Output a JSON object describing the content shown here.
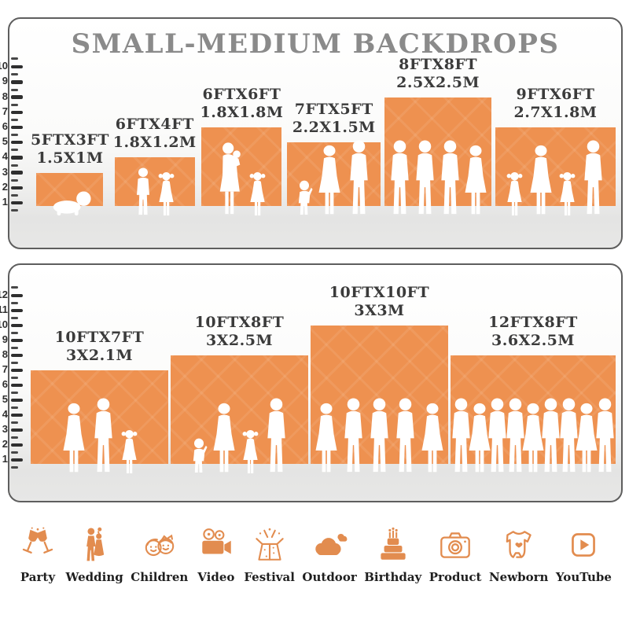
{
  "title": "SMALL-MEDIUM BACKDROPS",
  "colors": {
    "backdrop_orange": "#EE9150",
    "icon_orange": "#E28C4F",
    "title_gray": "#8A8A8A",
    "label_dark": "#3B3B3B",
    "ruler_dark": "#2F2F2F"
  },
  "chart_data": [
    {
      "type": "bar",
      "panel": "top",
      "title": "SMALL-MEDIUM BACKDROPS",
      "ylabel": "height scale (ft ruler)",
      "axis_ticks": [
        1,
        2,
        3,
        4,
        5,
        6,
        7,
        8,
        9,
        10
      ],
      "scale_min": 1,
      "scale_max": 10,
      "bars": [
        {
          "label_ft": "5FTX3FT",
          "label_m": "1.5X1M",
          "width_ft": 5,
          "height_ft": 3,
          "figures": [
            "crawling-baby"
          ]
        },
        {
          "label_ft": "6FTX4FT",
          "label_m": "1.8X1.2M",
          "width_ft": 6,
          "height_ft": 4,
          "figures": [
            "boy",
            "girl"
          ]
        },
        {
          "label_ft": "6FTX6FT",
          "label_m": "1.8X1.8M",
          "width_ft": 6,
          "height_ft": 6,
          "figures": [
            "mother-holding-baby",
            "girl"
          ]
        },
        {
          "label_ft": "7FTX5FT",
          "label_m": "2.2X1.5M",
          "width_ft": 7,
          "height_ft": 5,
          "figures": [
            "toddler",
            "woman",
            "man"
          ]
        },
        {
          "label_ft": "8FTX8FT",
          "label_m": "2.5X2.5M",
          "width_ft": 8,
          "height_ft": 8,
          "figures": [
            "man",
            "man",
            "man",
            "woman"
          ]
        },
        {
          "label_ft": "9FTX6FT",
          "label_m": "2.7X1.8M",
          "width_ft": 9,
          "height_ft": 6,
          "figures": [
            "girl",
            "woman",
            "girl",
            "man"
          ]
        }
      ]
    },
    {
      "type": "bar",
      "panel": "bottom",
      "ylabel": "height scale (ft ruler)",
      "axis_ticks": [
        1,
        2,
        3,
        4,
        5,
        6,
        7,
        8,
        9,
        10,
        11,
        12
      ],
      "scale_min": 1,
      "scale_max": 12,
      "bars": [
        {
          "label_ft": "10FTX7FT",
          "label_m": "3X2.1M",
          "width_ft": 10,
          "height_ft": 7,
          "figures": [
            "woman",
            "man",
            "girl"
          ]
        },
        {
          "label_ft": "10FTX8FT",
          "label_m": "3X2.5M",
          "width_ft": 10,
          "height_ft": 8,
          "figures": [
            "toddler",
            "woman",
            "girl",
            "man"
          ]
        },
        {
          "label_ft": "10FTX10FT",
          "label_m": "3X3M",
          "width_ft": 10,
          "height_ft": 10,
          "figures": [
            "woman",
            "man",
            "man",
            "man",
            "woman"
          ]
        },
        {
          "label_ft": "12FTX8FT",
          "label_m": "3.6X2.5M",
          "width_ft": 12,
          "height_ft": 8,
          "figures": [
            "man",
            "woman",
            "man",
            "man",
            "woman",
            "man",
            "man",
            "woman",
            "man"
          ]
        }
      ]
    }
  ],
  "categories": [
    {
      "label": "Party",
      "icon": "party-icon"
    },
    {
      "label": "Wedding",
      "icon": "wedding-icon"
    },
    {
      "label": "Children",
      "icon": "children-icon"
    },
    {
      "label": "Video",
      "icon": "video-icon"
    },
    {
      "label": "Festival",
      "icon": "festival-icon"
    },
    {
      "label": "Outdoor",
      "icon": "outdoor-icon"
    },
    {
      "label": "Birthday",
      "icon": "birthday-icon"
    },
    {
      "label": "Product",
      "icon": "product-icon"
    },
    {
      "label": "Newborn",
      "icon": "newborn-icon"
    },
    {
      "label": "YouTube",
      "icon": "youtube-icon"
    }
  ]
}
